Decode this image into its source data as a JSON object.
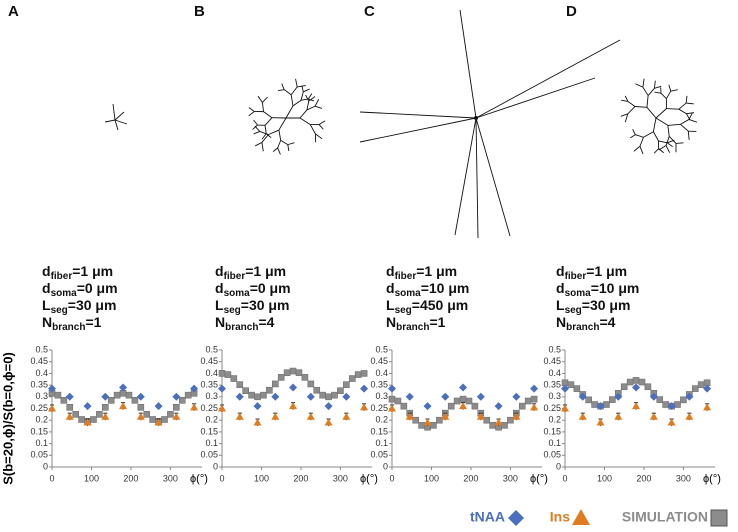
{
  "chart_data": [
    {
      "type": "scatter",
      "panel": "A",
      "ylabel": "S(b=20,ϕ)/S(b=0,ϕ=0)",
      "xlabel": "ϕ(°)",
      "params": [
        {
          "symbol": "d",
          "sub": "fiber",
          "rest": "=1 μm"
        },
        {
          "symbol": "d",
          "sub": "soma",
          "rest": "=0 μm"
        },
        {
          "symbol": "L",
          "sub": "seg",
          "rest": "=30 μm"
        },
        {
          "symbol": "N",
          "sub": "branch",
          "rest": "=1"
        }
      ],
      "xlim": [
        0,
        380
      ],
      "xticks": [
        0,
        100,
        200,
        300
      ],
      "ylim": [
        0,
        0.5
      ],
      "yticks": [
        0,
        0.05,
        0.1,
        0.15,
        0.2,
        0.25,
        0.3,
        0.35,
        0.4,
        0.45,
        0.5
      ],
      "series": [
        {
          "name": "SIMULATION",
          "marker": "square",
          "color": "#8c8c8c",
          "x": [
            0,
            15,
            30,
            45,
            60,
            75,
            90,
            105,
            120,
            135,
            150,
            165,
            180,
            195,
            210,
            225,
            240,
            255,
            270,
            285,
            300,
            315,
            330,
            345,
            360
          ],
          "values": [
            0.315,
            0.307,
            0.285,
            0.255,
            0.225,
            0.203,
            0.195,
            0.203,
            0.225,
            0.255,
            0.285,
            0.307,
            0.315,
            0.307,
            0.285,
            0.255,
            0.225,
            0.203,
            0.195,
            0.203,
            0.225,
            0.255,
            0.285,
            0.307,
            0.315
          ]
        },
        {
          "name": "tNAA",
          "marker": "diamond",
          "color": "#4a6fbf",
          "x": [
            0,
            45,
            90,
            135,
            180,
            225,
            270,
            315,
            360
          ],
          "values": [
            0.335,
            0.3,
            0.26,
            0.3,
            0.34,
            0.3,
            0.26,
            0.3,
            0.335
          ]
        },
        {
          "name": "Ins",
          "marker": "triangle",
          "color": "#e07b1f",
          "x": [
            0,
            45,
            90,
            135,
            180,
            225,
            270,
            315,
            360
          ],
          "values": [
            0.25,
            0.215,
            0.19,
            0.215,
            0.26,
            0.215,
            0.19,
            0.215,
            0.255
          ],
          "errors": [
            0.015,
            0.015,
            0.015,
            0.015,
            0.015,
            0.015,
            0.015,
            0.015,
            0.015
          ]
        }
      ]
    },
    {
      "type": "scatter",
      "panel": "B",
      "xlabel": "ϕ(°)",
      "params": [
        {
          "symbol": "d",
          "sub": "fiber",
          "rest": "=1 μm"
        },
        {
          "symbol": "d",
          "sub": "soma",
          "rest": "=0 μm"
        },
        {
          "symbol": "L",
          "sub": "seg",
          "rest": "=30 μm"
        },
        {
          "symbol": "N",
          "sub": "branch",
          "rest": "=4"
        }
      ],
      "xlim": [
        0,
        380
      ],
      "xticks": [
        0,
        100,
        200,
        300
      ],
      "ylim": [
        0,
        0.5
      ],
      "yticks": [
        0,
        0.05,
        0.1,
        0.15,
        0.2,
        0.25,
        0.3,
        0.35,
        0.4,
        0.45,
        0.5
      ],
      "series": [
        {
          "name": "SIMULATION",
          "marker": "square",
          "color": "#8c8c8c",
          "x": [
            0,
            15,
            30,
            45,
            60,
            75,
            90,
            105,
            120,
            135,
            150,
            165,
            180,
            195,
            210,
            225,
            240,
            255,
            270,
            285,
            300,
            315,
            330,
            345,
            360
          ],
          "values": [
            0.4,
            0.395,
            0.378,
            0.352,
            0.326,
            0.307,
            0.3,
            0.307,
            0.328,
            0.355,
            0.383,
            0.403,
            0.41,
            0.403,
            0.383,
            0.355,
            0.328,
            0.307,
            0.3,
            0.307,
            0.326,
            0.352,
            0.378,
            0.395,
            0.4
          ]
        },
        {
          "name": "tNAA",
          "marker": "diamond",
          "color": "#4a6fbf",
          "x": [
            0,
            45,
            90,
            135,
            180,
            225,
            270,
            315,
            360
          ],
          "values": [
            0.335,
            0.3,
            0.26,
            0.3,
            0.34,
            0.3,
            0.26,
            0.3,
            0.335
          ]
        },
        {
          "name": "Ins",
          "marker": "triangle",
          "color": "#e07b1f",
          "x": [
            0,
            45,
            90,
            135,
            180,
            225,
            270,
            315,
            360
          ],
          "values": [
            0.25,
            0.215,
            0.19,
            0.215,
            0.26,
            0.215,
            0.19,
            0.215,
            0.255
          ],
          "errors": [
            0.015,
            0.015,
            0.015,
            0.015,
            0.015,
            0.015,
            0.015,
            0.015,
            0.015
          ]
        }
      ]
    },
    {
      "type": "scatter",
      "panel": "C",
      "xlabel": "ϕ(°)",
      "params": [
        {
          "symbol": "d",
          "sub": "fiber",
          "rest": "=1 μm"
        },
        {
          "symbol": "d",
          "sub": "soma",
          "rest": "=10 μm"
        },
        {
          "symbol": "L",
          "sub": "seg",
          "rest": "=450 μm"
        },
        {
          "symbol": "N",
          "sub": "branch",
          "rest": "=1"
        }
      ],
      "xlim": [
        0,
        380
      ],
      "xticks": [
        0,
        100,
        200,
        300
      ],
      "ylim": [
        0,
        0.5
      ],
      "yticks": [
        0,
        0.05,
        0.1,
        0.15,
        0.2,
        0.25,
        0.3,
        0.35,
        0.4,
        0.45,
        0.5
      ],
      "series": [
        {
          "name": "SIMULATION",
          "marker": "square",
          "color": "#8c8c8c",
          "x": [
            0,
            15,
            30,
            45,
            60,
            75,
            90,
            105,
            120,
            135,
            150,
            165,
            180,
            195,
            210,
            225,
            240,
            255,
            270,
            285,
            300,
            315,
            330,
            345,
            360
          ],
          "values": [
            0.29,
            0.282,
            0.26,
            0.23,
            0.2,
            0.178,
            0.17,
            0.178,
            0.2,
            0.23,
            0.26,
            0.282,
            0.29,
            0.282,
            0.26,
            0.23,
            0.2,
            0.178,
            0.17,
            0.178,
            0.2,
            0.23,
            0.26,
            0.282,
            0.29
          ]
        },
        {
          "name": "tNAA",
          "marker": "diamond",
          "color": "#4a6fbf",
          "x": [
            0,
            45,
            90,
            135,
            180,
            225,
            270,
            315,
            360
          ],
          "values": [
            0.335,
            0.3,
            0.26,
            0.3,
            0.34,
            0.3,
            0.26,
            0.3,
            0.335
          ]
        },
        {
          "name": "Ins",
          "marker": "triangle",
          "color": "#e07b1f",
          "x": [
            0,
            45,
            90,
            135,
            180,
            225,
            270,
            315,
            360
          ],
          "values": [
            0.25,
            0.215,
            0.19,
            0.215,
            0.26,
            0.215,
            0.19,
            0.215,
            0.255
          ],
          "errors": [
            0.015,
            0.015,
            0.015,
            0.015,
            0.015,
            0.015,
            0.015,
            0.015,
            0.015
          ]
        }
      ]
    },
    {
      "type": "scatter",
      "panel": "D",
      "xlabel": "ϕ(°)",
      "params": [
        {
          "symbol": "d",
          "sub": "fiber",
          "rest": "=1 μm"
        },
        {
          "symbol": "d",
          "sub": "soma",
          "rest": "=10 μm"
        },
        {
          "symbol": "L",
          "sub": "seg",
          "rest": "=30 μm"
        },
        {
          "symbol": "N",
          "sub": "branch",
          "rest": "=4"
        }
      ],
      "xlim": [
        0,
        380
      ],
      "xticks": [
        0,
        100,
        200,
        300
      ],
      "ylim": [
        0,
        0.5
      ],
      "yticks": [
        0,
        0.05,
        0.1,
        0.15,
        0.2,
        0.25,
        0.3,
        0.35,
        0.4,
        0.45,
        0.5
      ],
      "series": [
        {
          "name": "SIMULATION",
          "marker": "square",
          "color": "#8c8c8c",
          "x": [
            0,
            15,
            30,
            45,
            60,
            75,
            90,
            105,
            120,
            135,
            150,
            165,
            180,
            195,
            210,
            225,
            240,
            255,
            270,
            285,
            300,
            315,
            330,
            345,
            360
          ],
          "values": [
            0.36,
            0.352,
            0.335,
            0.31,
            0.287,
            0.267,
            0.26,
            0.267,
            0.288,
            0.315,
            0.343,
            0.363,
            0.37,
            0.363,
            0.343,
            0.315,
            0.288,
            0.267,
            0.26,
            0.267,
            0.287,
            0.31,
            0.335,
            0.352,
            0.36
          ]
        },
        {
          "name": "tNAA",
          "marker": "diamond",
          "color": "#4a6fbf",
          "x": [
            0,
            45,
            90,
            135,
            180,
            225,
            270,
            315,
            360
          ],
          "values": [
            0.335,
            0.3,
            0.26,
            0.3,
            0.34,
            0.3,
            0.26,
            0.3,
            0.335
          ]
        },
        {
          "name": "Ins",
          "marker": "triangle",
          "color": "#e07b1f",
          "x": [
            0,
            45,
            90,
            135,
            180,
            225,
            270,
            315,
            360
          ],
          "values": [
            0.25,
            0.215,
            0.19,
            0.215,
            0.26,
            0.215,
            0.19,
            0.215,
            0.255
          ],
          "errors": [
            0.015,
            0.015,
            0.015,
            0.015,
            0.015,
            0.015,
            0.015,
            0.015,
            0.015
          ]
        }
      ]
    }
  ]
}
